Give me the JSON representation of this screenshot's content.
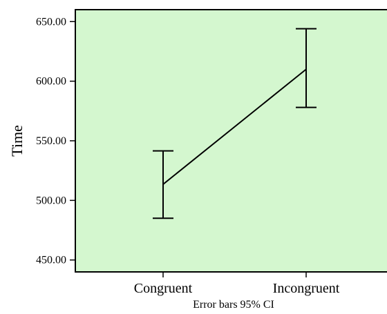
{
  "chart_data": {
    "type": "line",
    "categories": [
      "Congruent",
      "Incongruent"
    ],
    "series": [
      {
        "values": [
          513.5,
          610
        ],
        "ci_lower": [
          485,
          578
        ],
        "ci_upper": [
          541.5,
          644
        ]
      }
    ],
    "ylabel": "Time",
    "xlabel": "",
    "footnote": "Error bars 95% CI",
    "ylim": [
      440,
      660
    ],
    "yticks": [
      450,
      500,
      550,
      600,
      650
    ],
    "ytick_labels": [
      "450.00",
      "500.00",
      "550.00",
      "600.00",
      "650.00"
    ],
    "grid": false,
    "colors": {
      "plot_background": "#d4f7cf",
      "line": "#000000",
      "axis": "#000000"
    }
  }
}
